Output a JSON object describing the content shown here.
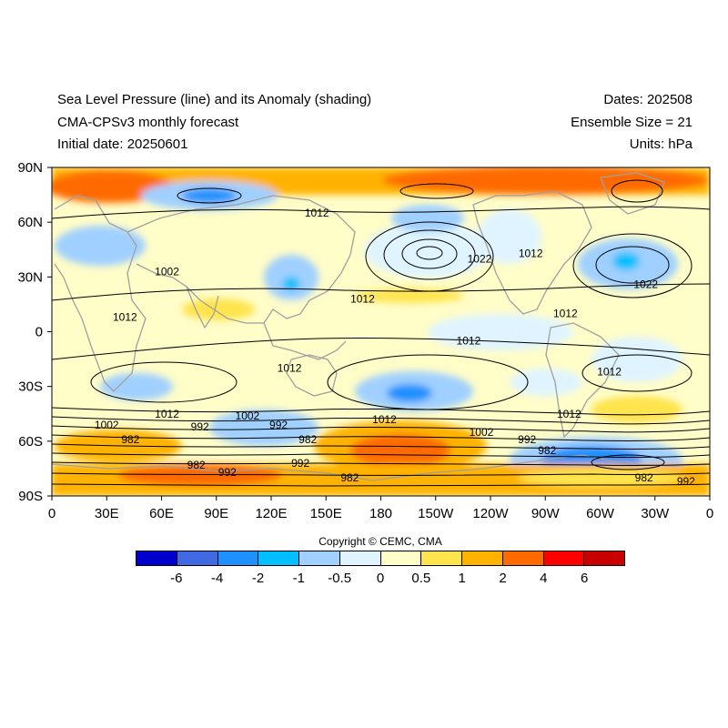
{
  "header": {
    "title_line1": "Sea Level Pressure (line) and its Anomaly (shading)",
    "title_line2": "CMA-CPSv3 monthly forecast",
    "title_line3": "Initial date: 20250601",
    "dates": "Dates: 202508",
    "ensemble": "Ensemble Size = 21",
    "units": "Units: hPa"
  },
  "map": {
    "lat_labels": [
      "90N",
      "60N",
      "30N",
      "0",
      "30S",
      "60S",
      "90S"
    ],
    "lon_labels": [
      "0",
      "30E",
      "60E",
      "90E",
      "120E",
      "150E",
      "180",
      "150W",
      "120W",
      "90W",
      "60W",
      "30W",
      "0"
    ],
    "contour_labels": [
      {
        "text": "1012",
        "lat": 65,
        "lon": 145
      },
      {
        "text": "1002",
        "lat": 33,
        "lon": 63
      },
      {
        "text": "1012",
        "lat": 8,
        "lon": 40
      },
      {
        "text": "1022",
        "lat": 40,
        "lon": -126
      },
      {
        "text": "1012",
        "lat": 43,
        "lon": -98
      },
      {
        "text": "1012",
        "lat": 18,
        "lon": 170
      },
      {
        "text": "1012",
        "lat": 10,
        "lon": -79
      },
      {
        "text": "1022",
        "lat": 26,
        "lon": -35
      },
      {
        "text": "1012",
        "lat": -5,
        "lon": -132
      },
      {
        "text": "1012",
        "lat": -20,
        "lon": 130
      },
      {
        "text": "1012",
        "lat": -22,
        "lon": -55
      },
      {
        "text": "1012",
        "lat": -45,
        "lon": 63
      },
      {
        "text": "1002",
        "lat": -51,
        "lon": 30
      },
      {
        "text": "992",
        "lat": -52,
        "lon": 81
      },
      {
        "text": "1002",
        "lat": -46,
        "lon": 107
      },
      {
        "text": "992",
        "lat": -51,
        "lon": 124
      },
      {
        "text": "982",
        "lat": -59,
        "lon": 140
      },
      {
        "text": "1012",
        "lat": -48,
        "lon": 182
      },
      {
        "text": "1002",
        "lat": -55,
        "lon": -125
      },
      {
        "text": "992",
        "lat": -59,
        "lon": -100
      },
      {
        "text": "982",
        "lat": -65,
        "lon": -89
      },
      {
        "text": "1012",
        "lat": -45,
        "lon": -77
      },
      {
        "text": "982",
        "lat": -59,
        "lon": 43
      },
      {
        "text": "982",
        "lat": -73,
        "lon": 79
      },
      {
        "text": "992",
        "lat": -77,
        "lon": 96
      },
      {
        "text": "992",
        "lat": -72,
        "lon": 136
      },
      {
        "text": "982",
        "lat": -80,
        "lon": 163
      },
      {
        "text": "982",
        "lat": -80,
        "lon": -36
      },
      {
        "text": "992",
        "lat": -82,
        "lon": -13
      }
    ]
  },
  "copyright": "Copyright © CEMC, CMA",
  "colorbar": {
    "colors": [
      "#0000cd",
      "#4169e1",
      "#1e90ff",
      "#00bfff",
      "#a0d0ff",
      "#dff4ff",
      "#fffdc8",
      "#ffe44d",
      "#ffb300",
      "#ff6a00",
      "#ff0000",
      "#c80000"
    ],
    "labels": [
      "-6",
      "-4",
      "-2",
      "-1",
      "-0.5",
      "0",
      "0.5",
      "1",
      "2",
      "4",
      "6"
    ]
  },
  "colors": {
    "land_outline": "#a0a0a0",
    "contour": "#000000",
    "frame": "#000000"
  }
}
